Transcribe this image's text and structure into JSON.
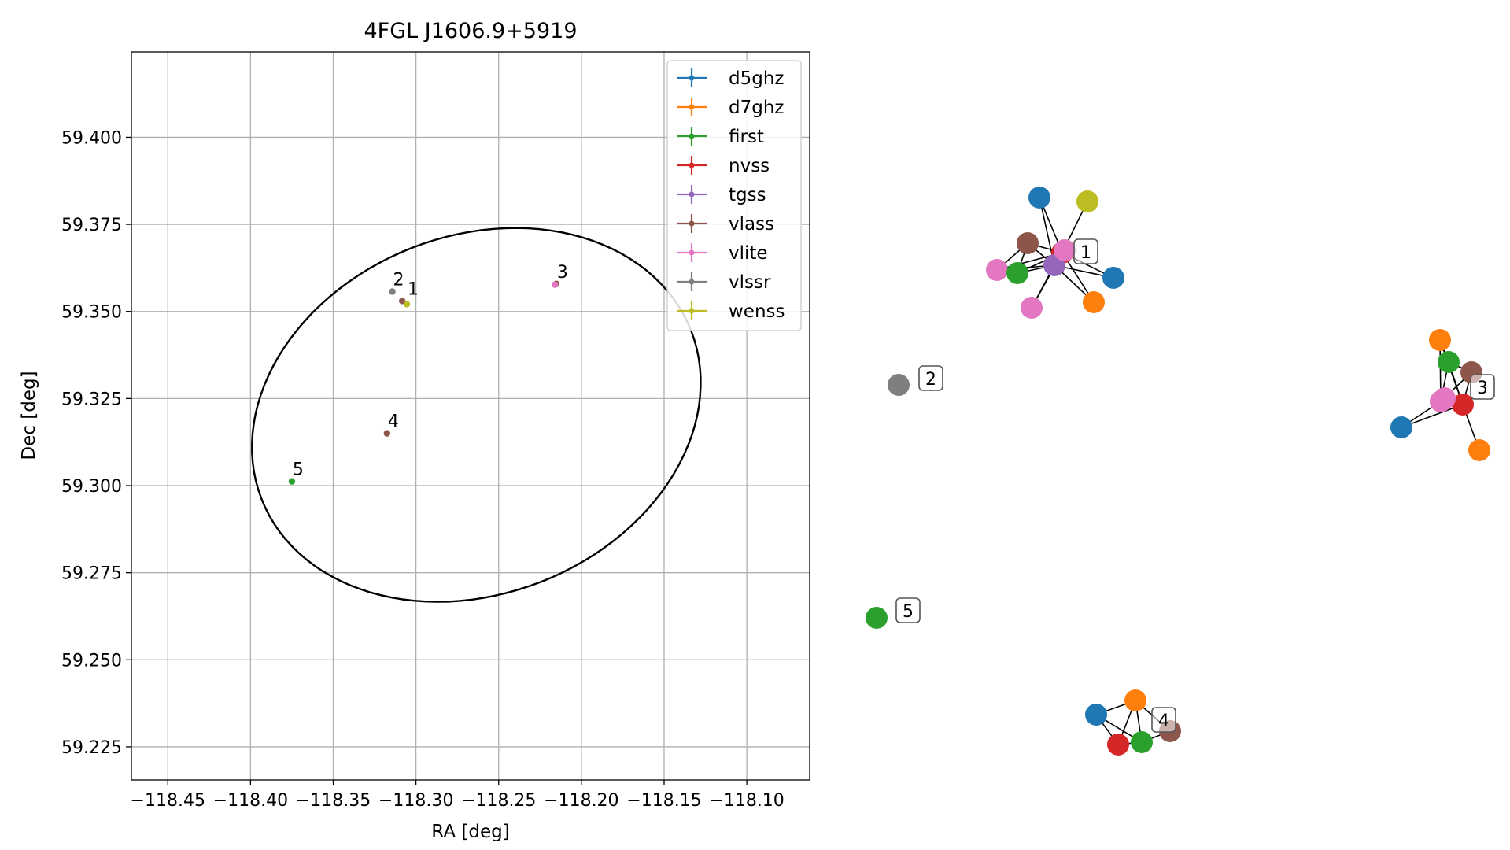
{
  "colors": {
    "d5ghz": "#1f77b4",
    "d7ghz": "#ff7f0e",
    "first": "#2ca02c",
    "nvss": "#d62728",
    "tgss": "#9467bd",
    "vlass": "#8c564b",
    "vlite": "#e377c2",
    "vlssr": "#7f7f7f",
    "wenss": "#bcbd22"
  },
  "chart_data": [
    {
      "type": "scatter",
      "title": "4FGL J1606.9+5919",
      "xlabel": "RA [deg]",
      "ylabel": "Dec [deg]",
      "xlim": [
        -118.472,
        -118.062
      ],
      "ylim": [
        59.2155,
        59.4245
      ],
      "x_ticks": [
        -118.45,
        -118.4,
        -118.35,
        -118.3,
        -118.25,
        -118.2,
        -118.15,
        -118.1
      ],
      "x_tick_labels": [
        "−118.45",
        "−118.40",
        "−118.35",
        "−118.30",
        "−118.25",
        "−118.20",
        "−118.15",
        "−118.10"
      ],
      "y_ticks": [
        59.225,
        59.25,
        59.275,
        59.3,
        59.325,
        59.35,
        59.375,
        59.4
      ],
      "y_tick_labels": [
        "59.225",
        "59.250",
        "59.275",
        "59.300",
        "59.325",
        "59.350",
        "59.375",
        "59.400"
      ],
      "grid": true,
      "legend": {
        "position": "top-right",
        "entries": [
          "d5ghz",
          "d7ghz",
          "first",
          "nvss",
          "tgss",
          "vlass",
          "vlite",
          "vlssr",
          "wenss"
        ]
      },
      "ellipse": {
        "center": [
          -118.2635,
          59.3203
        ],
        "semi_major": 0.136,
        "semi_minor": 0.0527,
        "angle_deg": 4.6
      },
      "sources": [
        {
          "label": "1",
          "points": [
            {
              "survey": "vlass",
              "x": -118.3083,
              "y": 59.353
            },
            {
              "survey": "wenss",
              "x": -118.3055,
              "y": 59.3521
            }
          ]
        },
        {
          "label": "2",
          "points": [
            {
              "survey": "vlssr",
              "x": -118.3143,
              "y": 59.3557
            }
          ]
        },
        {
          "label": "3",
          "points": [
            {
              "survey": "vlass",
              "x": -118.2152,
              "y": 59.3579
            },
            {
              "survey": "vlite",
              "x": -118.216,
              "y": 59.3577
            }
          ]
        },
        {
          "label": "4",
          "points": [
            {
              "survey": "vlass",
              "x": -118.3175,
              "y": 59.315
            }
          ]
        },
        {
          "label": "5",
          "points": [
            {
              "survey": "first",
              "x": -118.375,
              "y": 59.3012
            }
          ]
        }
      ]
    },
    {
      "type": "network",
      "clusters": [
        {
          "label": "1",
          "nodes": [
            {
              "id": "a",
              "survey": "d5ghz"
            },
            {
              "id": "b",
              "survey": "wenss"
            },
            {
              "id": "c",
              "survey": "vlass"
            },
            {
              "id": "d",
              "survey": "nvss"
            },
            {
              "id": "e",
              "survey": "vlite"
            },
            {
              "id": "f",
              "survey": "first"
            },
            {
              "id": "g",
              "survey": "tgss"
            },
            {
              "id": "h",
              "survey": "d5ghz"
            },
            {
              "id": "i",
              "survey": "d7ghz"
            },
            {
              "id": "j",
              "survey": "vlite"
            },
            {
              "id": "k",
              "survey": "vlite"
            }
          ],
          "edges": [
            [
              "c",
              "d"
            ],
            [
              "c",
              "g"
            ],
            [
              "c",
              "f"
            ],
            [
              "c",
              "e"
            ],
            [
              "a",
              "d"
            ],
            [
              "a",
              "g"
            ],
            [
              "b",
              "d"
            ],
            [
              "e",
              "g"
            ],
            [
              "e",
              "d"
            ],
            [
              "f",
              "g"
            ],
            [
              "f",
              "d"
            ],
            [
              "d",
              "g"
            ],
            [
              "d",
              "h"
            ],
            [
              "d",
              "i"
            ],
            [
              "g",
              "h"
            ],
            [
              "g",
              "i"
            ],
            [
              "g",
              "j"
            ],
            [
              "d",
              "j"
            ],
            [
              "k",
              "d"
            ]
          ]
        },
        {
          "label": "2",
          "nodes": [
            {
              "id": "a",
              "survey": "vlssr"
            }
          ],
          "edges": []
        },
        {
          "label": "3",
          "nodes": [
            {
              "id": "a",
              "survey": "d7ghz"
            },
            {
              "id": "b",
              "survey": "first"
            },
            {
              "id": "c",
              "survey": "vlass"
            },
            {
              "id": "d",
              "survey": "vlite"
            },
            {
              "id": "e",
              "survey": "nvss"
            },
            {
              "id": "f",
              "survey": "d5ghz"
            },
            {
              "id": "g",
              "survey": "d7ghz"
            },
            {
              "id": "h",
              "survey": "vlite"
            }
          ],
          "edges": [
            [
              "a",
              "b"
            ],
            [
              "a",
              "d"
            ],
            [
              "a",
              "e"
            ],
            [
              "b",
              "c"
            ],
            [
              "b",
              "d"
            ],
            [
              "b",
              "e"
            ],
            [
              "c",
              "d"
            ],
            [
              "c",
              "e"
            ],
            [
              "d",
              "e"
            ],
            [
              "d",
              "f"
            ],
            [
              "e",
              "f"
            ],
            [
              "e",
              "g"
            ],
            [
              "h",
              "d"
            ]
          ]
        },
        {
          "label": "4",
          "nodes": [
            {
              "id": "a",
              "survey": "d5ghz"
            },
            {
              "id": "b",
              "survey": "d7ghz"
            },
            {
              "id": "c",
              "survey": "vlass"
            },
            {
              "id": "d",
              "survey": "nvss"
            },
            {
              "id": "e",
              "survey": "first"
            }
          ],
          "edges": [
            [
              "a",
              "b"
            ],
            [
              "a",
              "d"
            ],
            [
              "a",
              "e"
            ],
            [
              "b",
              "c"
            ],
            [
              "b",
              "d"
            ],
            [
              "b",
              "e"
            ],
            [
              "c",
              "e"
            ],
            [
              "d",
              "e"
            ]
          ]
        },
        {
          "label": "5",
          "nodes": [
            {
              "id": "a",
              "survey": "first"
            }
          ],
          "edges": []
        }
      ]
    }
  ]
}
